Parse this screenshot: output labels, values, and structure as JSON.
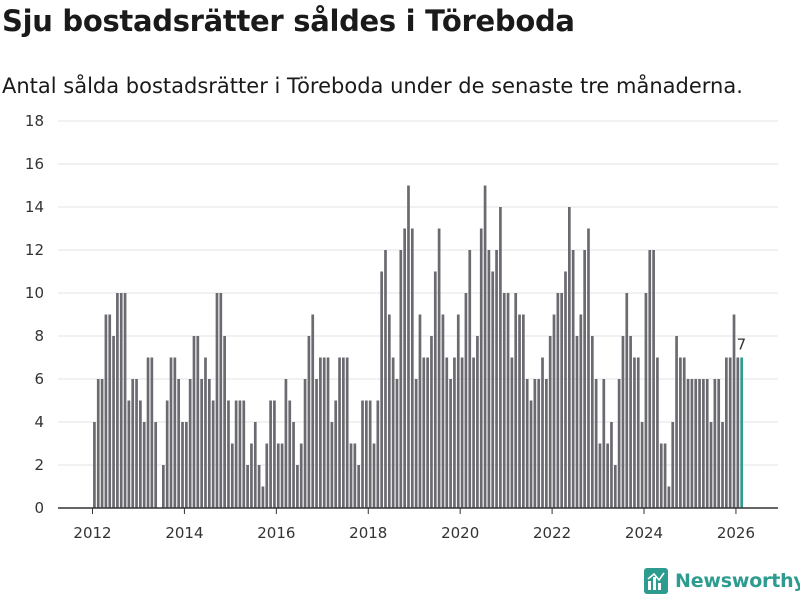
{
  "header": {
    "title": "Sju bostadsrätter såldes i Töreboda",
    "subtitle": "Antal sålda bostadsrätter i Töreboda under de senaste tre månaderna."
  },
  "brand": {
    "name": "Newsworthy",
    "color": "#2e9b8f"
  },
  "chart_data": {
    "type": "bar",
    "title": "Sju bostadsrätter såldes i Töreboda",
    "subtitle": "Antal sålda bostadsrätter i Töreboda under de senaste tre månaderna.",
    "xlabel": "",
    "ylabel": "",
    "ylim": [
      0,
      18
    ],
    "y_ticks": [
      0,
      2,
      4,
      6,
      8,
      10,
      12,
      14,
      16,
      18
    ],
    "x_ticks": [
      "2012",
      "2014",
      "2016",
      "2018",
      "2020",
      "2022",
      "2024",
      "2026"
    ],
    "grid": true,
    "start": "2012-01",
    "frequency": "monthly",
    "bar_color": "#6b6a70",
    "highlight_color": "#2e9b8f",
    "highlight_label": "7",
    "values": [
      4,
      6,
      6,
      9,
      9,
      8,
      10,
      10,
      10,
      5,
      6,
      6,
      5,
      4,
      7,
      7,
      4,
      0,
      2,
      5,
      7,
      7,
      6,
      4,
      4,
      6,
      8,
      8,
      6,
      7,
      6,
      5,
      10,
      10,
      8,
      5,
      3,
      5,
      5,
      5,
      2,
      3,
      4,
      2,
      1,
      3,
      5,
      5,
      3,
      3,
      6,
      5,
      4,
      2,
      3,
      6,
      8,
      9,
      6,
      7,
      7,
      7,
      4,
      5,
      7,
      7,
      7,
      3,
      3,
      2,
      5,
      5,
      5,
      3,
      5,
      11,
      12,
      9,
      7,
      6,
      12,
      13,
      15,
      13,
      6,
      9,
      7,
      7,
      8,
      11,
      13,
      9,
      7,
      6,
      7,
      9,
      7,
      10,
      12,
      7,
      8,
      13,
      15,
      12,
      11,
      12,
      14,
      10,
      10,
      7,
      10,
      9,
      9,
      6,
      5,
      6,
      6,
      7,
      6,
      8,
      9,
      10,
      10,
      11,
      14,
      12,
      8,
      9,
      12,
      13,
      8,
      6,
      3,
      6,
      3,
      4,
      2,
      6,
      8,
      10,
      8,
      7,
      7,
      4,
      10,
      12,
      12,
      7,
      3,
      3,
      1,
      4,
      8,
      7,
      7,
      6,
      6,
      6,
      6,
      6,
      6,
      4,
      6,
      6,
      4,
      7,
      7,
      9,
      7,
      7
    ]
  }
}
